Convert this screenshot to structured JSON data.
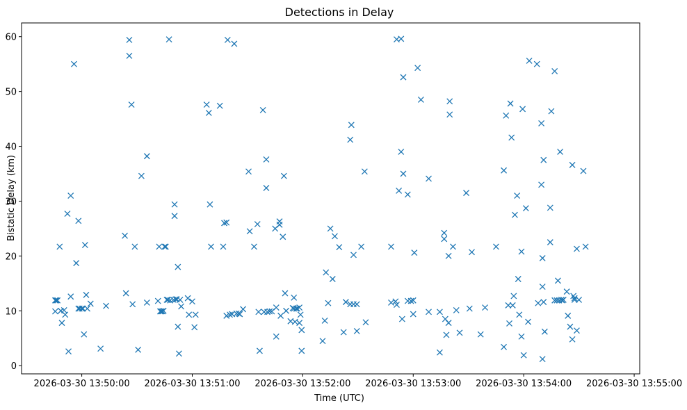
{
  "chart_data": {
    "type": "scatter",
    "title": "Detections in Delay",
    "xlabel": "Time (UTC)",
    "ylabel": "Bistatic Delay (km)",
    "x_unit": "minutes since 13:49:00",
    "xlim": [
      0.455,
      6.05
    ],
    "ylim": [
      -1.5,
      62.5
    ],
    "x_ticks": [
      {
        "value": 1,
        "label": "2026-03-30 13:50:00"
      },
      {
        "value": 2,
        "label": "2026-03-30 13:51:00"
      },
      {
        "value": 3,
        "label": "2026-03-30 13:52:00"
      },
      {
        "value": 4,
        "label": "2026-03-30 13:53:00"
      },
      {
        "value": 5,
        "label": "2026-03-30 13:54:00"
      },
      {
        "value": 6,
        "label": "2026-03-30 13:55:00"
      }
    ],
    "y_ticks": [
      0,
      10,
      20,
      30,
      40,
      50,
      60
    ],
    "marker": "x",
    "color": "#1f77b4",
    "series": [
      {
        "name": "Detections",
        "points": [
          [
            0.76,
            11.9
          ],
          [
            0.77,
            11.9
          ],
          [
            0.78,
            11.9
          ],
          [
            0.76,
            9.9
          ],
          [
            0.8,
            21.7
          ],
          [
            0.81,
            10.0
          ],
          [
            0.82,
            7.8
          ],
          [
            0.84,
            10.1
          ],
          [
            0.85,
            9.3
          ],
          [
            0.87,
            27.7
          ],
          [
            0.88,
            2.6
          ],
          [
            0.9,
            31.0
          ],
          [
            0.9,
            12.6
          ],
          [
            0.93,
            55.0
          ],
          [
            0.95,
            18.7
          ],
          [
            0.97,
            26.4
          ],
          [
            0.97,
            10.4
          ],
          [
            0.98,
            10.4
          ],
          [
            1.0,
            10.4
          ],
          [
            1.01,
            10.4
          ],
          [
            1.02,
            5.7
          ],
          [
            1.03,
            22.0
          ],
          [
            1.04,
            12.9
          ],
          [
            1.05,
            10.4
          ],
          [
            1.08,
            11.3
          ],
          [
            1.17,
            3.1
          ],
          [
            1.22,
            10.9
          ],
          [
            1.39,
            23.7
          ],
          [
            1.4,
            13.2
          ],
          [
            1.43,
            59.4
          ],
          [
            1.43,
            56.5
          ],
          [
            1.45,
            47.6
          ],
          [
            1.46,
            11.2
          ],
          [
            1.48,
            21.7
          ],
          [
            1.51,
            2.9
          ],
          [
            1.54,
            34.6
          ],
          [
            1.59,
            38.2
          ],
          [
            1.59,
            11.5
          ],
          [
            1.7,
            21.7
          ],
          [
            1.69,
            11.8
          ],
          [
            1.71,
            9.9
          ],
          [
            1.72,
            9.9
          ],
          [
            1.73,
            9.9
          ],
          [
            1.74,
            10.0
          ],
          [
            1.75,
            21.7
          ],
          [
            1.76,
            21.7
          ],
          [
            1.77,
            12.0
          ],
          [
            1.78,
            12.0
          ],
          [
            1.79,
            59.5
          ],
          [
            1.8,
            11.9
          ],
          [
            1.83,
            12.0
          ],
          [
            1.84,
            29.4
          ],
          [
            1.84,
            27.3
          ],
          [
            1.85,
            12.1
          ],
          [
            1.86,
            12.1
          ],
          [
            1.87,
            18.0
          ],
          [
            1.87,
            7.1
          ],
          [
            1.88,
            2.2
          ],
          [
            1.89,
            12.0
          ],
          [
            1.9,
            10.8
          ],
          [
            1.96,
            12.3
          ],
          [
            1.97,
            9.3
          ],
          [
            2.0,
            11.7
          ],
          [
            2.02,
            7.0
          ],
          [
            2.03,
            9.3
          ],
          [
            2.13,
            47.6
          ],
          [
            2.15,
            46.1
          ],
          [
            2.16,
            29.4
          ],
          [
            2.17,
            21.7
          ],
          [
            2.25,
            47.4
          ],
          [
            2.28,
            21.7
          ],
          [
            2.29,
            26.0
          ],
          [
            2.31,
            26.1
          ],
          [
            2.31,
            9.1
          ],
          [
            2.32,
            59.4
          ],
          [
            2.34,
            9.3
          ],
          [
            2.36,
            9.4
          ],
          [
            2.38,
            58.7
          ],
          [
            2.4,
            9.5
          ],
          [
            2.42,
            9.5
          ],
          [
            2.43,
            9.4
          ],
          [
            2.46,
            10.3
          ],
          [
            2.51,
            35.4
          ],
          [
            2.52,
            24.5
          ],
          [
            2.56,
            21.7
          ],
          [
            2.59,
            25.8
          ],
          [
            2.6,
            9.8
          ],
          [
            2.61,
            2.7
          ],
          [
            2.64,
            46.6
          ],
          [
            2.65,
            9.8
          ],
          [
            2.67,
            37.6
          ],
          [
            2.67,
            32.4
          ],
          [
            2.68,
            9.8
          ],
          [
            2.7,
            9.9
          ],
          [
            2.72,
            9.9
          ],
          [
            2.75,
            25.0
          ],
          [
            2.76,
            10.6
          ],
          [
            2.76,
            5.3
          ],
          [
            2.79,
            26.3
          ],
          [
            2.79,
            25.7
          ],
          [
            2.8,
            9.1
          ],
          [
            2.82,
            23.5
          ],
          [
            2.83,
            34.6
          ],
          [
            2.84,
            13.2
          ],
          [
            2.85,
            10.0
          ],
          [
            2.89,
            8.1
          ],
          [
            2.91,
            10.5
          ],
          [
            2.92,
            12.4
          ],
          [
            2.92,
            10.4
          ],
          [
            2.94,
            10.4
          ],
          [
            2.93,
            8.0
          ],
          [
            2.95,
            10.4
          ],
          [
            2.97,
            10.6
          ],
          [
            2.97,
            7.8
          ],
          [
            2.98,
            9.3
          ],
          [
            2.99,
            6.5
          ],
          [
            2.99,
            2.7
          ],
          [
            3.18,
            4.5
          ],
          [
            3.2,
            8.2
          ],
          [
            3.21,
            17.0
          ],
          [
            3.23,
            11.4
          ],
          [
            3.27,
            15.8
          ],
          [
            3.25,
            25.0
          ],
          [
            3.29,
            23.6
          ],
          [
            3.33,
            21.6
          ],
          [
            3.37,
            6.1
          ],
          [
            3.39,
            11.6
          ],
          [
            3.44,
            43.9
          ],
          [
            3.43,
            41.2
          ],
          [
            3.43,
            11.2
          ],
          [
            3.46,
            20.2
          ],
          [
            3.46,
            11.2
          ],
          [
            3.49,
            11.2
          ],
          [
            3.49,
            6.3
          ],
          [
            3.53,
            21.7
          ],
          [
            3.56,
            35.4
          ],
          [
            3.57,
            7.9
          ],
          [
            3.8,
            21.7
          ],
          [
            3.8,
            11.5
          ],
          [
            3.84,
            11.7
          ],
          [
            3.85,
            11.1
          ],
          [
            3.85,
            59.5
          ],
          [
            3.87,
            31.9
          ],
          [
            3.89,
            59.6
          ],
          [
            3.89,
            39.0
          ],
          [
            3.9,
            8.5
          ],
          [
            3.91,
            52.6
          ],
          [
            3.91,
            35.0
          ],
          [
            3.95,
            31.2
          ],
          [
            3.95,
            11.8
          ],
          [
            3.98,
            11.8
          ],
          [
            4.0,
            11.9
          ],
          [
            4.0,
            9.4
          ],
          [
            4.01,
            20.6
          ],
          [
            4.04,
            54.3
          ],
          [
            4.07,
            48.5
          ],
          [
            4.14,
            34.1
          ],
          [
            4.14,
            9.8
          ],
          [
            4.24,
            2.4
          ],
          [
            4.24,
            9.8
          ],
          [
            4.28,
            24.2
          ],
          [
            4.28,
            23.1
          ],
          [
            4.29,
            8.5
          ],
          [
            4.3,
            5.6
          ],
          [
            4.32,
            7.8
          ],
          [
            4.32,
            20.0
          ],
          [
            4.33,
            48.2
          ],
          [
            4.33,
            45.8
          ],
          [
            4.36,
            21.7
          ],
          [
            4.39,
            10.1
          ],
          [
            4.42,
            6.0
          ],
          [
            4.48,
            31.5
          ],
          [
            4.51,
            10.4
          ],
          [
            4.53,
            20.7
          ],
          [
            4.61,
            5.7
          ],
          [
            4.65,
            10.6
          ],
          [
            4.75,
            21.7
          ],
          [
            4.82,
            35.6
          ],
          [
            4.84,
            45.6
          ],
          [
            4.82,
            3.4
          ],
          [
            4.86,
            11.0
          ],
          [
            4.87,
            7.7
          ],
          [
            4.88,
            47.8
          ],
          [
            4.89,
            41.6
          ],
          [
            4.9,
            11.0
          ],
          [
            4.91,
            12.7
          ],
          [
            4.92,
            27.5
          ],
          [
            4.94,
            31.0
          ],
          [
            4.95,
            15.8
          ],
          [
            4.96,
            9.3
          ],
          [
            4.98,
            5.3
          ],
          [
            4.98,
            20.8
          ],
          [
            4.99,
            46.8
          ],
          [
            5.0,
            1.9
          ],
          [
            5.02,
            28.7
          ],
          [
            5.04,
            8.0
          ],
          [
            5.05,
            55.6
          ],
          [
            5.12,
            55.0
          ],
          [
            5.13,
            11.4
          ],
          [
            5.16,
            44.2
          ],
          [
            5.16,
            33.0
          ],
          [
            5.17,
            19.6
          ],
          [
            5.17,
            14.4
          ],
          [
            5.17,
            1.2
          ],
          [
            5.18,
            37.5
          ],
          [
            5.18,
            11.6
          ],
          [
            5.19,
            6.2
          ],
          [
            5.24,
            28.8
          ],
          [
            5.24,
            22.5
          ],
          [
            5.25,
            46.4
          ],
          [
            5.28,
            53.7
          ],
          [
            5.28,
            11.9
          ],
          [
            5.3,
            11.9
          ],
          [
            5.31,
            15.5
          ],
          [
            5.32,
            11.9
          ],
          [
            5.33,
            39.0
          ],
          [
            5.34,
            12.0
          ],
          [
            5.35,
            11.9
          ],
          [
            5.36,
            12.0
          ],
          [
            5.39,
            13.5
          ],
          [
            5.4,
            9.1
          ],
          [
            5.42,
            7.1
          ],
          [
            5.44,
            36.6
          ],
          [
            5.44,
            4.8
          ],
          [
            5.45,
            12.7
          ],
          [
            5.46,
            12.0
          ],
          [
            5.46,
            12.3
          ],
          [
            5.48,
            6.4
          ],
          [
            5.48,
            21.3
          ],
          [
            5.5,
            12.0
          ],
          [
            5.54,
            35.5
          ],
          [
            5.56,
            21.7
          ]
        ]
      }
    ]
  }
}
